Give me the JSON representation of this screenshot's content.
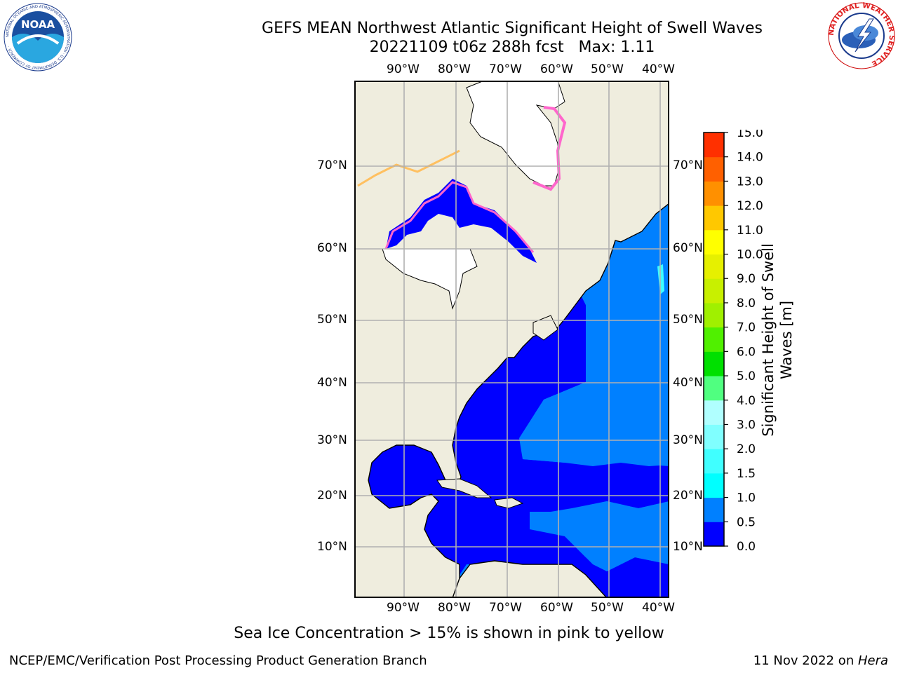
{
  "title_line1": "GEFS MEAN Northwest Atlantic Significant Height of Swell Waves",
  "title_line2": "20221109 t06z 288h fcst   Max: 1.11",
  "map": {
    "lon_ticks": [
      "90°W",
      "80°W",
      "70°W",
      "60°W",
      "50°W",
      "40°W"
    ],
    "lat_ticks": [
      "70°N",
      "60°N",
      "50°N",
      "40°N",
      "30°N",
      "20°N",
      "10°N"
    ],
    "colors": {
      "land": "#efedde",
      "ocean_low": "#0000ff",
      "ocean_mid": "#0080ff",
      "ice": "#ffffff",
      "ice_edge": "#ff66cc",
      "grid": "#b0b0b0"
    }
  },
  "colorbar": {
    "label_line1": "Significant Height of Swell",
    "label_line2": "Waves [m]",
    "ticks": [
      "0.0",
      "0.5",
      "1.0",
      "1.5",
      "2.0",
      "3.0",
      "4.0",
      "5.0",
      "6.0",
      "7.0",
      "8.0",
      "9.0",
      "10.0",
      "11.0",
      "12.0",
      "13.0",
      "14.0",
      "15.0"
    ],
    "colors": [
      "#0000ff",
      "#0080ff",
      "#00ffff",
      "#40ffff",
      "#80ffff",
      "#b0ffff",
      "#50ff80",
      "#00e000",
      "#50f000",
      "#a0f000",
      "#c8f000",
      "#e6f000",
      "#ffff00",
      "#ffc800",
      "#ff9000",
      "#ff6000",
      "#ff3000",
      "#ff0000"
    ]
  },
  "note": "Sea Ice Concentration > 15% is shown in pink to yellow",
  "footer_left": "NCEP/EMC/Verification Post Processing Product Generation Branch",
  "footer_right_prefix": "11 Nov 2022 on ",
  "footer_right_host": "Hera",
  "logo_noaa_text": "NOAA",
  "logo_noaa_ring": "NATIONAL OCEANIC AND ATMOSPHERIC ADMINISTRATION · U.S. DEPARTMENT OF COMMERCE ·",
  "logo_nws_ring": "NATIONAL WEATHER SERVICE"
}
